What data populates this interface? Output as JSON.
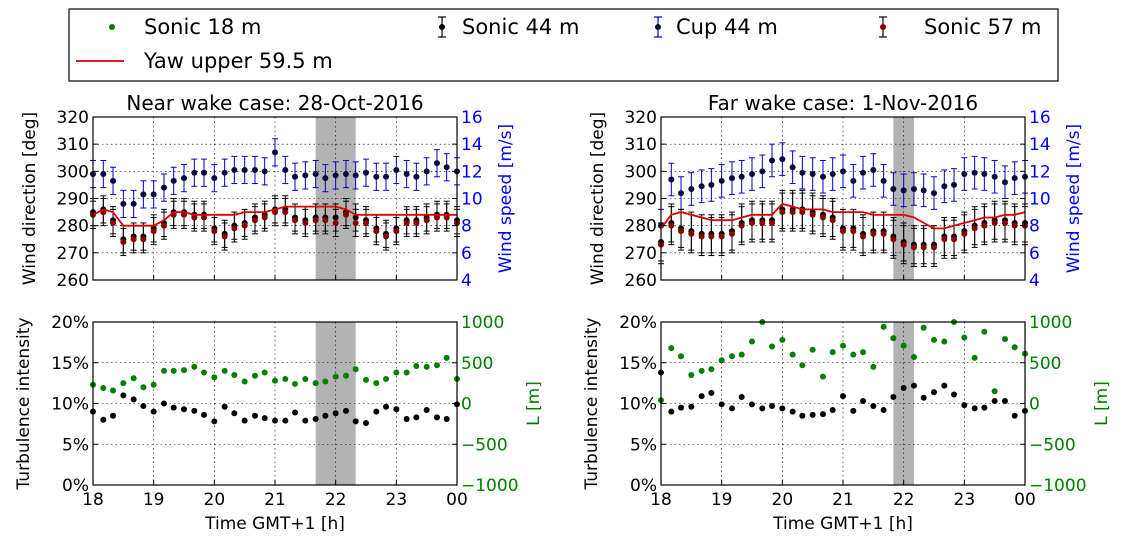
{
  "colors": {
    "sonic18": "#008000",
    "sonic44": "#000000",
    "cup44": "#0000cc",
    "sonic57": "#8b0000",
    "yaw": "#e00000",
    "shade": "#b3b3b3",
    "right_axis_top": "#0000ff",
    "right_axis_bottom": "#008000"
  },
  "legend": {
    "items": [
      {
        "key": "sonic18",
        "label": "Sonic 18 m",
        "marker": "dot"
      },
      {
        "key": "sonic44",
        "label": "Sonic 44 m",
        "marker": "errorbar"
      },
      {
        "key": "cup44",
        "label": "Cup 44 m",
        "marker": "errorbar"
      },
      {
        "key": "sonic57",
        "label": "Sonic 57 m",
        "marker": "errorbar"
      },
      {
        "key": "yaw",
        "label": "Yaw upper 59.5 m",
        "marker": "line"
      }
    ]
  },
  "chart_data": [
    {
      "type": "scatter",
      "title": "Near wake case: 28-Oct-2016",
      "ylabel": "Wind direction [deg]",
      "ylabel_right": "Wind speed [m/s]",
      "ylim": [
        260,
        320
      ],
      "ylim_right": [
        4,
        16
      ],
      "yticks": [
        260,
        270,
        280,
        290,
        300,
        310,
        320
      ],
      "yticks_right": [
        4,
        6,
        8,
        10,
        12,
        14,
        16
      ],
      "x": [
        18.0,
        18.17,
        18.33,
        18.5,
        18.67,
        18.83,
        19.0,
        19.17,
        19.33,
        19.5,
        19.67,
        19.83,
        20.0,
        20.17,
        20.33,
        20.5,
        20.67,
        20.83,
        21.0,
        21.17,
        21.33,
        21.5,
        21.67,
        21.83,
        22.0,
        22.17,
        22.33,
        22.5,
        22.67,
        22.83,
        23.0,
        23.17,
        23.33,
        23.5,
        23.67,
        23.83,
        24.0
      ],
      "shaded": [
        21.67,
        22.33
      ],
      "grid": true,
      "series": [
        {
          "name": "Cup 44 m",
          "key": "cup44",
          "axis": "right",
          "values": [
            11.8,
            11.8,
            11.3,
            9.6,
            9.6,
            10.3,
            10.3,
            10.8,
            11.3,
            11.5,
            11.9,
            11.9,
            11.5,
            11.9,
            12.1,
            12.1,
            12.1,
            12.0,
            13.4,
            12.1,
            11.6,
            11.7,
            11.8,
            11.5,
            11.7,
            11.8,
            11.7,
            11.9,
            11.6,
            11.6,
            12.1,
            11.8,
            11.6,
            12.0,
            12.6,
            12.3,
            12.0
          ],
          "err": [
            1.0,
            1.0,
            1.0,
            1.0,
            1.0,
            1.0,
            1.0,
            1.0,
            1.0,
            1.0,
            1.0,
            1.0,
            1.0,
            1.0,
            1.0,
            1.0,
            1.0,
            1.0,
            1.0,
            1.0,
            1.0,
            1.0,
            1.0,
            1.0,
            1.0,
            1.0,
            1.0,
            1.0,
            1.0,
            1.0,
            1.0,
            1.0,
            1.0,
            1.0,
            1.0,
            1.0,
            1.0
          ]
        },
        {
          "name": "Sonic 44 m",
          "key": "sonic44",
          "axis": "left",
          "values": [
            285,
            286,
            282,
            275,
            276,
            276,
            279,
            281,
            285,
            285,
            284,
            284,
            279,
            277,
            280,
            281,
            283,
            284,
            286,
            286,
            283,
            282,
            283,
            283,
            283,
            285,
            283,
            282,
            279,
            277,
            279,
            282,
            282,
            283,
            284,
            284,
            282
          ],
          "err": [
            5,
            5,
            5,
            5,
            5,
            5,
            5,
            5,
            5,
            5,
            5,
            5,
            5,
            5,
            5,
            5,
            5,
            5,
            5,
            5,
            5,
            5,
            5,
            5,
            5,
            5,
            5,
            5,
            5,
            5,
            5,
            5,
            5,
            5,
            5,
            5,
            5
          ]
        },
        {
          "name": "Sonic 57 m",
          "key": "sonic57",
          "axis": "left",
          "values": [
            284,
            285,
            281,
            274,
            275,
            275,
            278,
            280,
            284,
            284,
            283,
            283,
            278,
            276,
            279,
            280,
            282,
            283,
            285,
            285,
            282,
            281,
            282,
            282,
            281,
            284,
            281,
            281,
            278,
            276,
            278,
            281,
            281,
            282,
            283,
            283,
            281
          ],
          "err": [
            5,
            5,
            5,
            5,
            5,
            5,
            5,
            5,
            5,
            5,
            5,
            5,
            5,
            5,
            5,
            5,
            5,
            5,
            5,
            5,
            5,
            5,
            5,
            5,
            5,
            5,
            5,
            5,
            5,
            5,
            5,
            5,
            5,
            5,
            5,
            5,
            5
          ]
        },
        {
          "name": "Yaw upper 59.5 m",
          "key": "yaw",
          "axis": "left",
          "values": [
            284,
            286,
            285,
            280,
            280,
            280,
            280,
            282,
            285,
            285,
            284,
            284,
            284,
            284,
            284,
            285,
            285,
            285,
            286,
            287,
            287,
            287,
            287,
            287,
            287,
            286,
            284,
            284,
            284,
            284,
            284,
            284,
            284,
            284,
            284,
            284,
            284
          ]
        }
      ]
    },
    {
      "type": "scatter",
      "title": "Far wake case: 1-Nov-2016",
      "ylabel": "Wind direction [deg]",
      "ylabel_right": "Wind speed [m/s]",
      "ylim": [
        260,
        320
      ],
      "ylim_right": [
        4,
        16
      ],
      "yticks": [
        260,
        270,
        280,
        290,
        300,
        310,
        320
      ],
      "yticks_right": [
        4,
        6,
        8,
        10,
        12,
        14,
        16
      ],
      "x": [
        18.0,
        18.17,
        18.33,
        18.5,
        18.67,
        18.83,
        19.0,
        19.17,
        19.33,
        19.5,
        19.67,
        19.83,
        20.0,
        20.17,
        20.33,
        20.5,
        20.67,
        20.83,
        21.0,
        21.17,
        21.33,
        21.5,
        21.67,
        21.83,
        22.0,
        22.17,
        22.33,
        22.5,
        22.67,
        22.83,
        23.0,
        23.17,
        23.33,
        23.5,
        23.67,
        23.83,
        24.0
      ],
      "shaded": [
        21.83,
        22.17
      ],
      "grid": true,
      "series": [
        {
          "name": "Cup 44 m",
          "key": "cup44",
          "axis": "right",
          "values": [
            8.0,
            11.4,
            10.4,
            10.7,
            10.9,
            11.0,
            11.3,
            11.5,
            11.6,
            11.8,
            12.0,
            12.8,
            12.9,
            12.3,
            11.9,
            11.8,
            11.6,
            11.8,
            12.0,
            11.3,
            11.9,
            12.1,
            11.3,
            10.7,
            10.6,
            10.7,
            10.6,
            10.4,
            10.9,
            11.0,
            11.8,
            11.9,
            11.8,
            11.6,
            11.2,
            11.5,
            11.6
          ],
          "err": [
            1.2,
            1.2,
            1.2,
            1.2,
            1.2,
            1.2,
            1.2,
            1.2,
            1.2,
            1.2,
            1.2,
            1.2,
            1.2,
            1.2,
            1.2,
            1.2,
            1.2,
            1.2,
            1.2,
            1.2,
            1.2,
            1.2,
            1.2,
            1.2,
            1.2,
            1.2,
            1.2,
            1.2,
            1.2,
            1.2,
            1.2,
            1.2,
            1.2,
            1.2,
            1.2,
            1.2,
            1.2
          ]
        },
        {
          "name": "Sonic 44 m",
          "key": "sonic44",
          "axis": "left",
          "values": [
            274,
            281,
            279,
            278,
            277,
            277,
            277,
            278,
            281,
            282,
            282,
            282,
            286,
            286,
            286,
            285,
            284,
            283,
            279,
            279,
            277,
            278,
            278,
            276,
            274,
            273,
            273,
            273,
            276,
            276,
            278,
            280,
            281,
            282,
            282,
            281,
            281
          ],
          "err": [
            7,
            7,
            7,
            7,
            7,
            7,
            7,
            7,
            7,
            7,
            7,
            7,
            7,
            7,
            7,
            7,
            7,
            7,
            7,
            7,
            7,
            7,
            7,
            7,
            7,
            7,
            7,
            7,
            7,
            7,
            7,
            7,
            7,
            7,
            7,
            7,
            7
          ]
        },
        {
          "name": "Sonic 57 m",
          "key": "sonic57",
          "axis": "left",
          "values": [
            273,
            280,
            278,
            277,
            276,
            276,
            276,
            277,
            280,
            281,
            281,
            281,
            285,
            285,
            285,
            284,
            283,
            282,
            278,
            278,
            276,
            277,
            277,
            275,
            273,
            272,
            272,
            272,
            275,
            275,
            277,
            279,
            280,
            281,
            281,
            280,
            280
          ],
          "err": [
            7,
            7,
            7,
            7,
            7,
            7,
            7,
            7,
            7,
            7,
            7,
            7,
            7,
            7,
            7,
            7,
            7,
            7,
            7,
            7,
            7,
            7,
            7,
            7,
            7,
            7,
            7,
            7,
            7,
            7,
            7,
            7,
            7,
            7,
            7,
            7,
            7
          ]
        },
        {
          "name": "Yaw upper 59.5 m",
          "key": "yaw",
          "axis": "left",
          "values": [
            279,
            284,
            285,
            284,
            283,
            282,
            282,
            282,
            283,
            284,
            284,
            284,
            288,
            287,
            286,
            286,
            286,
            285,
            285,
            285,
            285,
            284,
            284,
            284,
            284,
            283,
            281,
            279,
            279,
            280,
            281,
            282,
            283,
            283,
            284,
            284,
            285
          ]
        }
      ]
    },
    {
      "type": "scatter",
      "xlabel": "Time GMT+1 [h]",
      "ylabel": "Turbulence intensity",
      "ylabel_right": "L [m]",
      "ylim": [
        0,
        20
      ],
      "ylim_right": [
        -1000,
        1000
      ],
      "yticks": [
        "0%",
        "5%",
        "10%",
        "15%",
        "20%"
      ],
      "yticks_right": [
        "−1000",
        "−500",
        "0",
        "500",
        "1000"
      ],
      "xlim": [
        18,
        24
      ],
      "xticks": [
        "18",
        "19",
        "20",
        "21",
        "22",
        "23",
        "00"
      ],
      "x": [
        18.0,
        18.17,
        18.33,
        18.5,
        18.67,
        18.83,
        19.0,
        19.17,
        19.33,
        19.5,
        19.67,
        19.83,
        20.0,
        20.17,
        20.33,
        20.5,
        20.67,
        20.83,
        21.0,
        21.17,
        21.33,
        21.5,
        21.67,
        21.83,
        22.0,
        22.17,
        22.33,
        22.5,
        22.67,
        22.83,
        23.0,
        23.17,
        23.33,
        23.5,
        23.67,
        23.83,
        24.0
      ],
      "shaded": [
        21.67,
        22.33
      ],
      "grid": true,
      "series": [
        {
          "name": "Sonic 18 m",
          "key": "sonic18",
          "axis": "right",
          "values": [
            230,
            190,
            160,
            250,
            310,
            200,
            230,
            400,
            400,
            410,
            450,
            380,
            320,
            400,
            350,
            270,
            340,
            380,
            280,
            300,
            240,
            300,
            250,
            270,
            330,
            340,
            420,
            290,
            250,
            300,
            380,
            380,
            460,
            450,
            470,
            560,
            300
          ]
        },
        {
          "name": "Sonic 44 m",
          "key": "sonic44",
          "axis": "left",
          "values": [
            9.0,
            8.0,
            8.5,
            11.0,
            10.5,
            9.7,
            9.0,
            10.0,
            9.5,
            9.3,
            9.1,
            8.6,
            7.8,
            9.6,
            8.8,
            7.9,
            8.5,
            8.2,
            7.9,
            7.9,
            8.9,
            7.9,
            8.1,
            8.5,
            8.8,
            9.1,
            7.8,
            7.6,
            9.0,
            9.6,
            9.3,
            8.1,
            8.3,
            9.2,
            8.3,
            8.1,
            9.9
          ]
        }
      ]
    },
    {
      "type": "scatter",
      "xlabel": "Time GMT+1 [h]",
      "ylabel": "Turbulence intensity",
      "ylabel_right": "L [m]",
      "ylim": [
        0,
        20
      ],
      "ylim_right": [
        -1000,
        1000
      ],
      "yticks": [
        "0%",
        "5%",
        "10%",
        "15%",
        "20%"
      ],
      "yticks_right": [
        "−1000",
        "−500",
        "0",
        "500",
        "1000"
      ],
      "xlim": [
        18,
        24
      ],
      "xticks": [
        "18",
        "19",
        "20",
        "21",
        "22",
        "23",
        "00"
      ],
      "x": [
        18.0,
        18.17,
        18.33,
        18.5,
        18.67,
        18.83,
        19.0,
        19.17,
        19.33,
        19.5,
        19.67,
        19.83,
        20.0,
        20.17,
        20.33,
        20.5,
        20.67,
        20.83,
        21.0,
        21.17,
        21.33,
        21.5,
        21.67,
        21.83,
        22.0,
        22.17,
        22.33,
        22.5,
        22.67,
        22.83,
        23.0,
        23.17,
        23.33,
        23.5,
        23.67,
        23.83,
        24.0
      ],
      "shaded": [
        21.83,
        22.17
      ],
      "grid": true,
      "series": [
        {
          "name": "Sonic 18 m",
          "key": "sonic18",
          "axis": "right",
          "values": [
            40,
            680,
            580,
            350,
            400,
            420,
            530,
            580,
            600,
            760,
            1000,
            700,
            780,
            600,
            470,
            660,
            330,
            630,
            710,
            600,
            630,
            450,
            940,
            800,
            710,
            570,
            930,
            780,
            760,
            1000,
            810,
            560,
            880,
            150,
            790,
            690,
            610
          ]
        },
        {
          "name": "Sonic 44 m",
          "key": "sonic44",
          "axis": "left",
          "values": [
            13.8,
            9.0,
            9.5,
            9.6,
            10.9,
            11.3,
            9.9,
            9.4,
            10.8,
            9.9,
            9.4,
            9.7,
            9.4,
            9.0,
            8.5,
            8.6,
            8.7,
            9.2,
            10.9,
            9.1,
            10.3,
            9.7,
            9.2,
            10.8,
            11.9,
            12.2,
            10.7,
            11.4,
            12.2,
            11.1,
            9.8,
            9.4,
            9.5,
            10.3,
            10.3,
            8.5,
            9.1
          ]
        }
      ]
    }
  ]
}
